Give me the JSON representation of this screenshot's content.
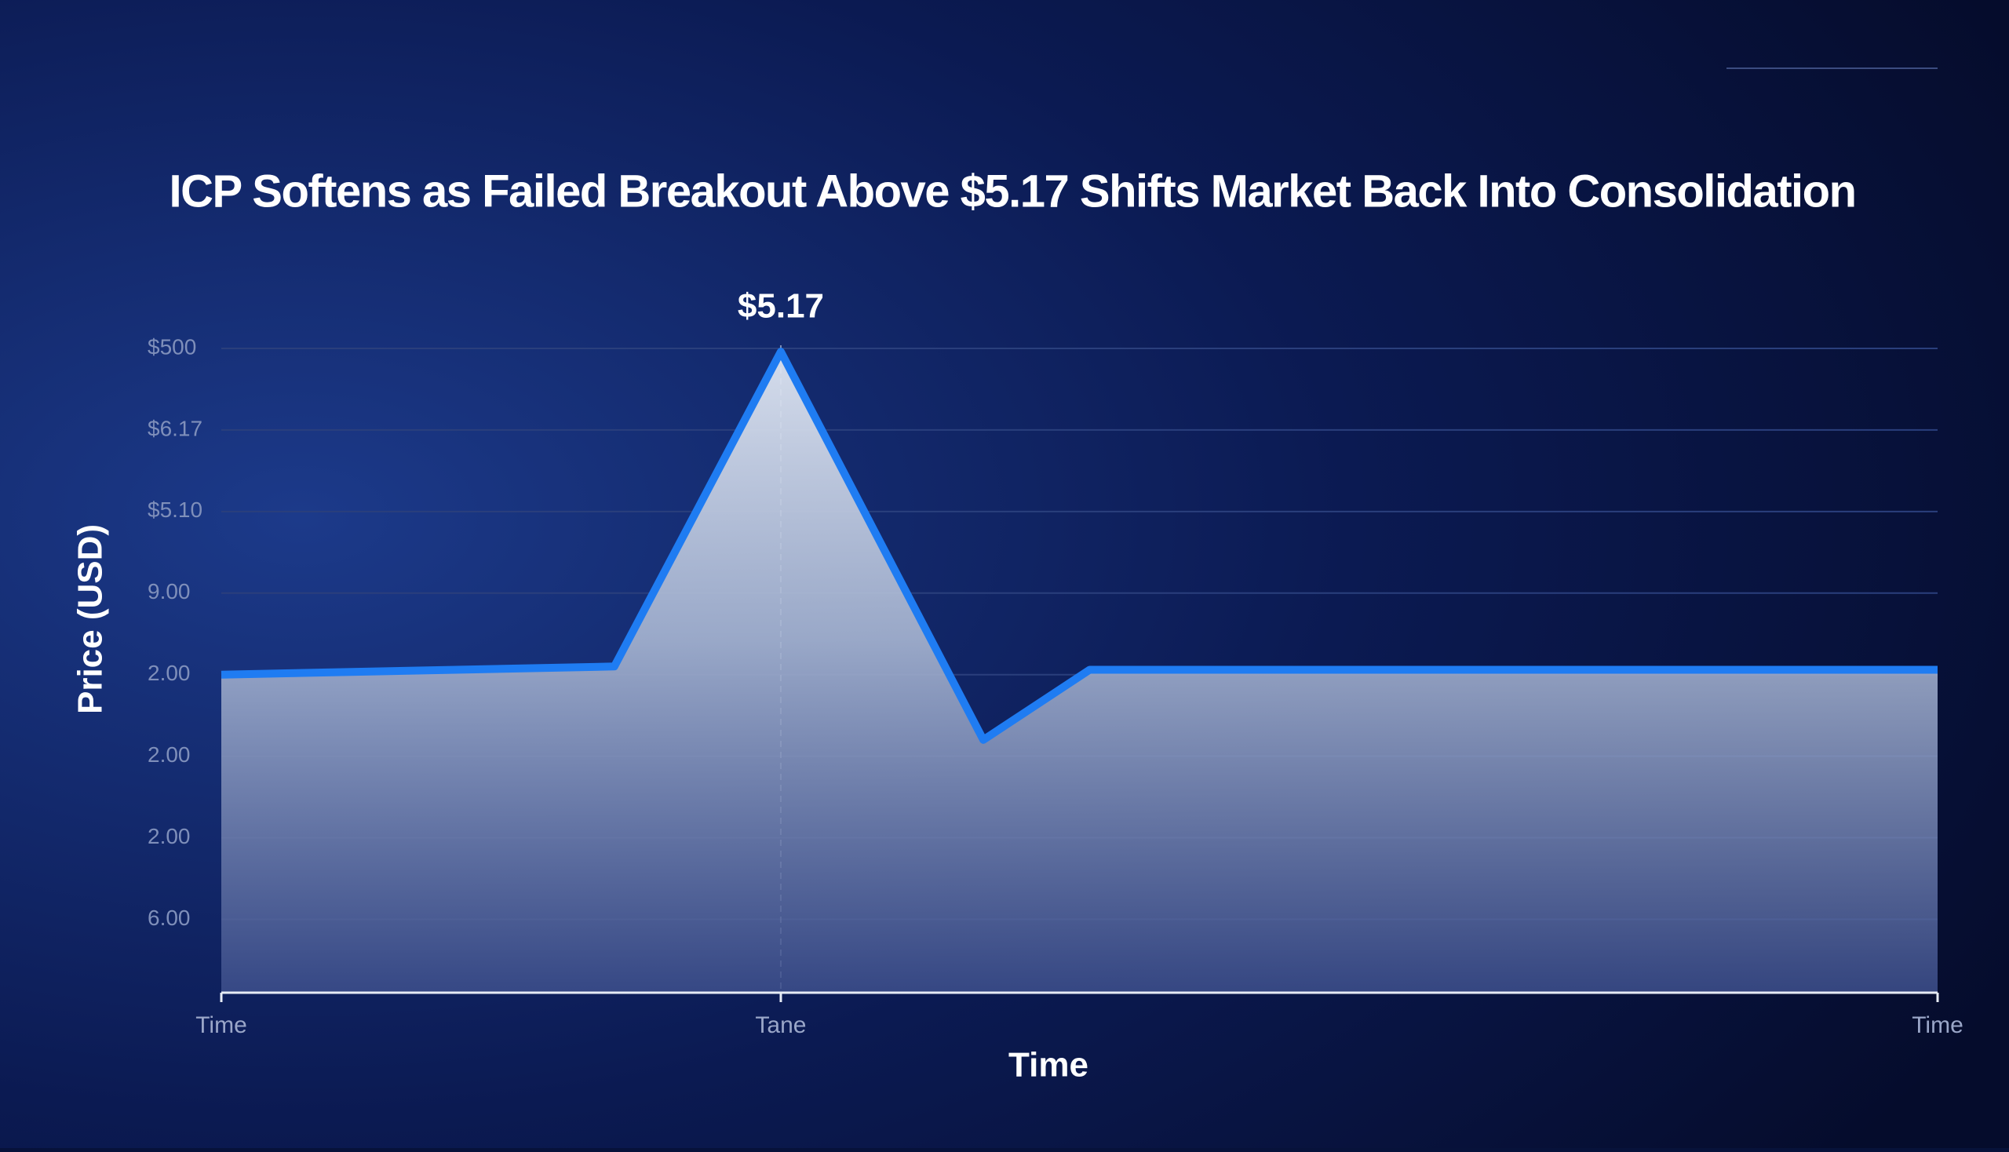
{
  "chart_data": {
    "type": "area",
    "title": "ICP Softens as Failed Breakout Above $5.17 Shifts Market Back Into Consolidation",
    "xlabel": "Time",
    "ylabel": "Price (USD)",
    "annotation": {
      "text": "$5.17",
      "x": 32.6
    },
    "x": [
      0,
      22.9,
      32.6,
      44.4,
      50.6,
      100
    ],
    "series": [
      {
        "name": "ICP",
        "color": "#1f7cf2",
        "values": [
          3.9,
          4.0,
          7.86,
          3.1,
          3.96,
          3.96
        ]
      }
    ],
    "xlim": [
      0,
      100
    ],
    "xticks": [
      {
        "value": 0,
        "label": "Time"
      },
      {
        "value": 32.6,
        "label": "Tane"
      },
      {
        "value": 100,
        "label": "Time"
      }
    ],
    "ylim": [
      0,
      7.9
    ],
    "yticks": [
      {
        "value": 7.9,
        "label": "$500"
      },
      {
        "value": 6.9,
        "label": "$6.17"
      },
      {
        "value": 5.9,
        "label": "$5.10"
      },
      {
        "value": 4.9,
        "label": "9.00"
      },
      {
        "value": 3.9,
        "label": "2.00"
      },
      {
        "value": 2.9,
        "label": "2.00"
      },
      {
        "value": 1.9,
        "label": "2.00"
      },
      {
        "value": 0.9,
        "label": "6.00"
      }
    ],
    "grid": true
  }
}
